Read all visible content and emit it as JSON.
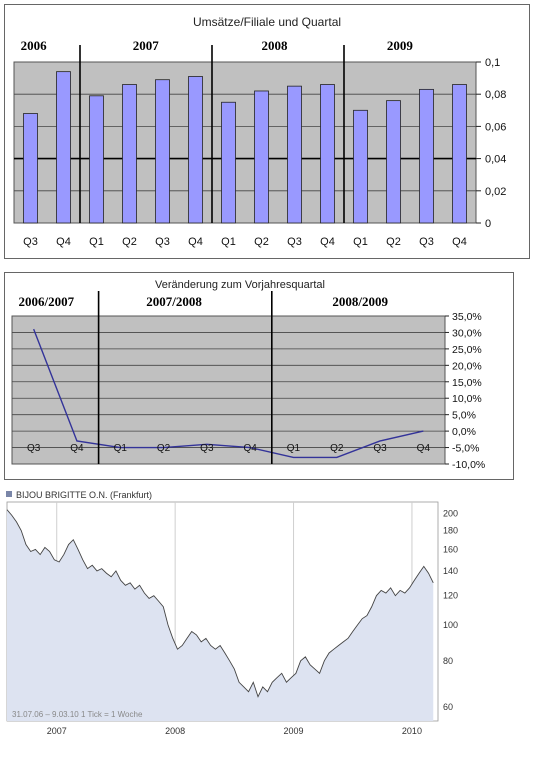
{
  "chart_data": [
    {
      "type": "bar",
      "title": "Umsätze/Filiale und Quartal",
      "groups": [
        "2006",
        "2007",
        "2008",
        "2009"
      ],
      "categories": [
        "Q3",
        "Q4",
        "Q1",
        "Q2",
        "Q3",
        "Q4",
        "Q1",
        "Q2",
        "Q3",
        "Q4",
        "Q1",
        "Q2",
        "Q3",
        "Q4"
      ],
      "values": [
        0.068,
        0.094,
        0.079,
        0.086,
        0.089,
        0.091,
        0.075,
        0.082,
        0.085,
        0.086,
        0.07,
        0.076,
        0.083,
        0.086
      ],
      "ylim": [
        0,
        0.1
      ],
      "yticks": [
        "0",
        "0,02",
        "0,04",
        "0,06",
        "0,08",
        "0,1"
      ],
      "ytick_values": [
        0,
        0.02,
        0.04,
        0.06,
        0.08,
        0.1
      ],
      "grid": true,
      "bar_color": "#9999ff",
      "plot_bg": "#c0c0c0"
    },
    {
      "type": "line",
      "title": "Veränderung zum Vorjahresquartal",
      "groups": [
        "2006/2007",
        "2007/2008",
        "2008/2009"
      ],
      "categories": [
        "Q3",
        "Q4",
        "Q1",
        "Q2",
        "Q3",
        "Q4",
        "Q1",
        "Q2",
        "Q3",
        "Q4"
      ],
      "values": [
        0.31,
        -0.03,
        -0.05,
        -0.05,
        -0.04,
        -0.05,
        -0.08,
        -0.08,
        -0.03,
        0.0
      ],
      "ylim": [
        -0.1,
        0.35
      ],
      "yticks": [
        "35,0%",
        "30,0%",
        "25,0%",
        "20,0%",
        "15,0%",
        "10,0%",
        "5,0%",
        "0,0%",
        "-5,0%",
        "-10,0%"
      ],
      "ytick_values": [
        0.35,
        0.3,
        0.25,
        0.2,
        0.15,
        0.1,
        0.05,
        0.0,
        -0.05,
        -0.1
      ],
      "grid": true,
      "line_color": "#333399",
      "plot_bg": "#c0c0c0"
    },
    {
      "type": "area",
      "legend": "BIJOU BRIGITTE O.N. (Frankfurt)",
      "footnote": "31.07.06 – 9.03.10   1 Tick = 1 Woche",
      "xticks": [
        "2007",
        "2008",
        "2009",
        "2010"
      ],
      "xtick_values": [
        2007.0,
        2008.0,
        2009.0,
        2010.0
      ],
      "yticks": [
        "200",
        "180",
        "160",
        "140",
        "120",
        "100",
        "80",
        "60"
      ],
      "ytick_values": [
        200,
        180,
        160,
        140,
        120,
        100,
        80,
        60
      ],
      "y_scale": "log",
      "x": [
        2006.58,
        2006.62,
        2006.66,
        2006.7,
        2006.74,
        2006.78,
        2006.82,
        2006.86,
        2006.9,
        2006.94,
        2006.98,
        2007.02,
        2007.06,
        2007.1,
        2007.14,
        2007.18,
        2007.22,
        2007.26,
        2007.3,
        2007.34,
        2007.38,
        2007.42,
        2007.46,
        2007.5,
        2007.54,
        2007.58,
        2007.62,
        2007.66,
        2007.7,
        2007.74,
        2007.78,
        2007.82,
        2007.86,
        2007.9,
        2007.94,
        2007.98,
        2008.02,
        2008.06,
        2008.1,
        2008.14,
        2008.18,
        2008.22,
        2008.26,
        2008.3,
        2008.34,
        2008.38,
        2008.42,
        2008.46,
        2008.5,
        2008.54,
        2008.58,
        2008.62,
        2008.66,
        2008.7,
        2008.74,
        2008.78,
        2008.82,
        2008.86,
        2008.9,
        2008.94,
        2008.98,
        2009.02,
        2009.06,
        2009.1,
        2009.14,
        2009.18,
        2009.22,
        2009.26,
        2009.3,
        2009.34,
        2009.38,
        2009.42,
        2009.46,
        2009.5,
        2009.54,
        2009.58,
        2009.62,
        2009.66,
        2009.7,
        2009.74,
        2009.78,
        2009.82,
        2009.86,
        2009.9,
        2009.94,
        2009.98,
        2010.02,
        2010.06,
        2010.1,
        2010.14,
        2010.18
      ],
      "values": [
        205,
        198,
        190,
        180,
        165,
        158,
        160,
        155,
        162,
        158,
        150,
        148,
        155,
        165,
        170,
        160,
        150,
        142,
        145,
        140,
        142,
        138,
        135,
        140,
        132,
        128,
        130,
        125,
        128,
        122,
        118,
        120,
        116,
        112,
        100,
        92,
        86,
        88,
        92,
        96,
        94,
        90,
        92,
        88,
        86,
        88,
        84,
        80,
        76,
        70,
        68,
        66,
        70,
        64,
        68,
        66,
        70,
        72,
        74,
        70,
        72,
        74,
        80,
        82,
        78,
        76,
        74,
        80,
        84,
        86,
        88,
        90,
        92,
        96,
        100,
        104,
        106,
        112,
        120,
        124,
        122,
        126,
        120,
        124,
        122,
        126,
        132,
        138,
        144,
        138,
        130
      ],
      "line_color": "#444444",
      "fill_color": "#dde3f1"
    }
  ]
}
